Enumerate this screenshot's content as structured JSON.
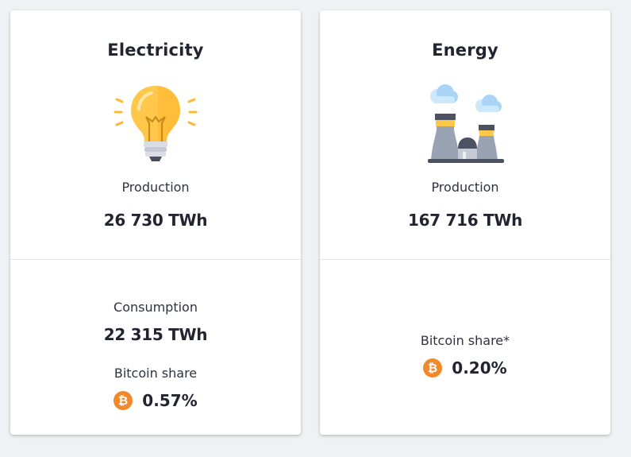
{
  "colors": {
    "page_background": "#f0f1f4",
    "card_background": "#ffffff",
    "bitcoin_orange": "#f0892b",
    "bulb_yellow": "#ffc84a"
  },
  "electricity": {
    "title": "Electricity",
    "icon": "lightbulb-icon",
    "production_label": "Production",
    "production_value": "26 730 TWh",
    "consumption_label": "Consumption",
    "consumption_value": "22 315 TWh",
    "bitcoin_share_label": "Bitcoin share",
    "bitcoin_share_icon": "bitcoin-icon",
    "bitcoin_share_value": "0.57%"
  },
  "energy": {
    "title": "Energy",
    "icon": "power-plant-icon",
    "production_label": "Production",
    "production_value": "167 716 TWh",
    "bitcoin_share_label": "Bitcoin share*",
    "bitcoin_share_icon": "bitcoin-icon",
    "bitcoin_share_value": "0.20%"
  }
}
